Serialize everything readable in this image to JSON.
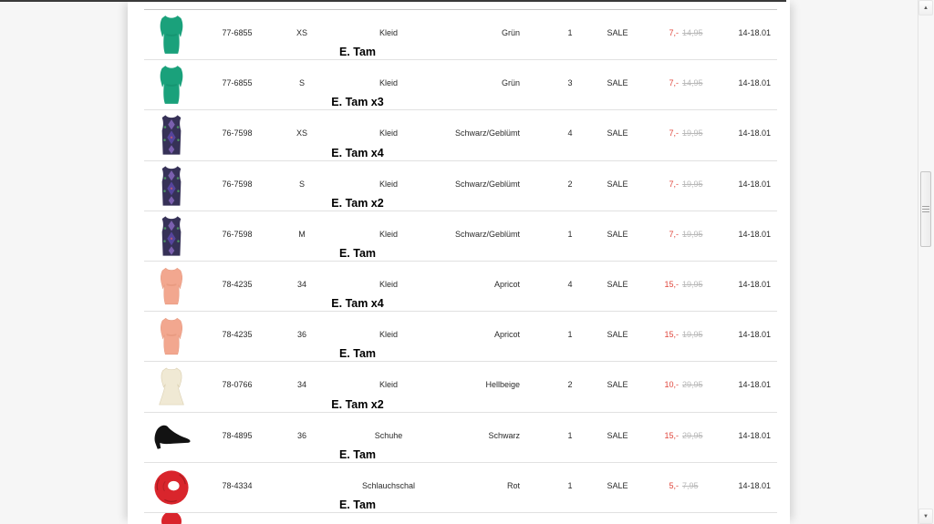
{
  "colors": {
    "price_new": "#e0473d",
    "price_old": "#b9b9b9",
    "topbar": "#3a3a3a",
    "green_dress": "#1aa17b",
    "pattern_dress_base": "#363157",
    "apricot_dress": "#f2a78f",
    "beige_dress": "#f0e9d4",
    "shoe_black": "#121212",
    "scarf_red": "#d9252c"
  },
  "table": {
    "rows": [
      {
        "product": "green-dress",
        "article": "77-6855",
        "size": "XS",
        "type": "Kleid",
        "color": "Grün",
        "qty": "1",
        "sale": "SALE",
        "price_new": "7,-",
        "price_old": "14,95",
        "date": "14-18.01",
        "label": "E. Tam"
      },
      {
        "product": "green-dress",
        "article": "77-6855",
        "size": "S",
        "type": "Kleid",
        "color": "Grün",
        "qty": "3",
        "sale": "SALE",
        "price_new": "7,-",
        "price_old": "14,95",
        "date": "14-18.01",
        "label": "E. Tam x3"
      },
      {
        "product": "pattern-dress",
        "article": "76-7598",
        "size": "XS",
        "type": "Kleid",
        "color": "Schwarz/Geblümt",
        "qty": "4",
        "sale": "SALE",
        "price_new": "7,-",
        "price_old": "19,95",
        "date": "14-18.01",
        "label": "E. Tam x4"
      },
      {
        "product": "pattern-dress",
        "article": "76-7598",
        "size": "S",
        "type": "Kleid",
        "color": "Schwarz/Geblümt",
        "qty": "2",
        "sale": "SALE",
        "price_new": "7,-",
        "price_old": "19,95",
        "date": "14-18.01",
        "label": "E. Tam x2"
      },
      {
        "product": "pattern-dress",
        "article": "76-7598",
        "size": "M",
        "type": "Kleid",
        "color": "Schwarz/Geblümt",
        "qty": "1",
        "sale": "SALE",
        "price_new": "7,-",
        "price_old": "19,95",
        "date": "14-18.01",
        "label": "E. Tam"
      },
      {
        "product": "apricot-dress",
        "article": "78-4235",
        "size": "34",
        "type": "Kleid",
        "color": "Apricot",
        "qty": "4",
        "sale": "SALE",
        "price_new": "15,-",
        "price_old": "19,95",
        "date": "14-18.01",
        "label": "E. Tam x4"
      },
      {
        "product": "apricot-dress",
        "article": "78-4235",
        "size": "36",
        "type": "Kleid",
        "color": "Apricot",
        "qty": "1",
        "sale": "SALE",
        "price_new": "15,-",
        "price_old": "19,95",
        "date": "14-18.01",
        "label": "E. Tam"
      },
      {
        "product": "beige-dress",
        "article": "78-0766",
        "size": "34",
        "type": "Kleid",
        "color": "Hellbeige",
        "qty": "2",
        "sale": "SALE",
        "price_new": "10,-",
        "price_old": "29,95",
        "date": "14-18.01",
        "label": "E. Tam x2"
      },
      {
        "product": "black-pump",
        "article": "78-4895",
        "size": "36",
        "type": "Schuhe",
        "color": "Schwarz",
        "qty": "1",
        "sale": "SALE",
        "price_new": "15,-",
        "price_old": "29,95",
        "date": "14-18.01",
        "label": "E. Tam"
      },
      {
        "product": "red-scarf",
        "article": "78-4334",
        "size": "",
        "type": "Schlauchschal",
        "color": "Rot",
        "qty": "1",
        "sale": "SALE",
        "price_new": "5,-",
        "price_old": "7,95",
        "date": "14-18.01",
        "label": "E. Tam"
      }
    ],
    "partial_row": {
      "product": "red-item-top"
    }
  },
  "scrollbar": {
    "up_arrow": "▲",
    "down_arrow": "▼"
  }
}
